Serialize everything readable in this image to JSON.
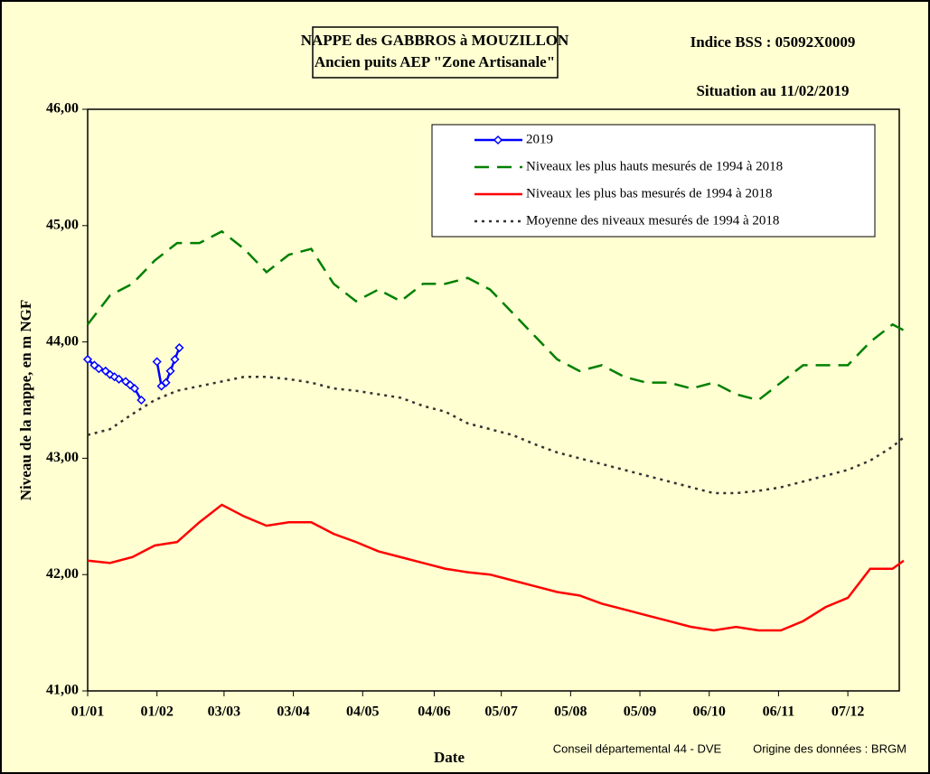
{
  "chart_data": {
    "type": "line",
    "title": [
      "NAPPE des GABBROS à MOUZILLON",
      "Ancien puits AEP \"Zone Artisanale\""
    ],
    "subtitle": "Indice BSS : 05092X0009",
    "annotations": [
      "Situation au 11/02/2019",
      "Conseil départemental 44 - DVE",
      "Origine des données : BRGM"
    ],
    "x_label": "Date",
    "y_label": "Niveau de la nappe, en m NGF",
    "xlim": [
      0,
      363
    ],
    "ylim": [
      41,
      46
    ],
    "xticks": [
      {
        "value": 0,
        "label": "01/01"
      },
      {
        "value": 31,
        "label": "01/02"
      },
      {
        "value": 61,
        "label": "03/03"
      },
      {
        "value": 92,
        "label": "03/04"
      },
      {
        "value": 123,
        "label": "04/05"
      },
      {
        "value": 155,
        "label": "04/06"
      },
      {
        "value": 185,
        "label": "05/07"
      },
      {
        "value": 216,
        "label": "05/08"
      },
      {
        "value": 247,
        "label": "05/09"
      },
      {
        "value": 278,
        "label": "06/10"
      },
      {
        "value": 309,
        "label": "06/11"
      },
      {
        "value": 340,
        "label": "07/12"
      }
    ],
    "yticks": [
      {
        "value": 41,
        "label": "41,00"
      },
      {
        "value": 42,
        "label": "42,00"
      },
      {
        "value": 43,
        "label": "43,00"
      },
      {
        "value": 44,
        "label": "44,00"
      },
      {
        "value": 45,
        "label": "45,00"
      },
      {
        "value": 46,
        "label": "46,00"
      }
    ],
    "grid": false,
    "legend": "upper right",
    "series": [
      {
        "name": "2019",
        "color": "#0000ff",
        "dash": "solid",
        "marker": "diamond",
        "x": [
          0,
          3,
          5,
          8,
          10,
          12,
          14,
          17,
          19,
          21,
          24,
          null,
          31,
          33,
          35,
          37,
          39,
          41
        ],
        "values": [
          43.85,
          43.8,
          43.77,
          43.75,
          43.72,
          43.7,
          43.68,
          43.66,
          43.63,
          43.6,
          43.5,
          null,
          43.83,
          43.62,
          43.65,
          43.75,
          43.85,
          43.95
        ]
      },
      {
        "name": "Niveaux les plus hauts mesurés de 1994 à 2018",
        "color": "#008000",
        "dash": "dashed",
        "x": [
          0,
          10,
          20,
          30,
          40,
          50,
          60,
          70,
          80,
          90,
          100,
          110,
          120,
          130,
          140,
          150,
          160,
          170,
          180,
          190,
          200,
          210,
          220,
          230,
          240,
          250,
          260,
          270,
          280,
          290,
          300,
          310,
          320,
          330,
          340,
          350,
          360,
          365
        ],
        "values": [
          44.15,
          44.4,
          44.5,
          44.7,
          44.85,
          44.85,
          44.95,
          44.8,
          44.6,
          44.75,
          44.8,
          44.5,
          44.35,
          44.45,
          44.35,
          44.5,
          44.5,
          44.55,
          44.45,
          44.25,
          44.05,
          43.85,
          43.75,
          43.8,
          43.7,
          43.65,
          43.65,
          43.6,
          43.65,
          43.55,
          43.5,
          43.65,
          43.8,
          43.8,
          43.8,
          44.0,
          44.15,
          44.1
        ]
      },
      {
        "name": "Niveaux les plus bas mesurés de 1994 à 2018",
        "color": "#ff0000",
        "dash": "solid",
        "x": [
          0,
          10,
          20,
          30,
          40,
          50,
          60,
          70,
          80,
          90,
          100,
          110,
          120,
          130,
          140,
          150,
          160,
          170,
          180,
          190,
          200,
          210,
          220,
          230,
          240,
          250,
          260,
          270,
          280,
          290,
          300,
          310,
          320,
          330,
          340,
          350,
          360,
          365
        ],
        "values": [
          42.12,
          42.1,
          42.15,
          42.25,
          42.28,
          42.45,
          42.6,
          42.5,
          42.42,
          42.45,
          42.45,
          42.35,
          42.28,
          42.2,
          42.15,
          42.1,
          42.05,
          42.02,
          42.0,
          41.95,
          41.9,
          41.85,
          41.82,
          41.75,
          41.7,
          41.65,
          41.6,
          41.55,
          41.52,
          41.55,
          41.52,
          41.52,
          41.6,
          41.72,
          41.8,
          42.05,
          42.05,
          42.12
        ]
      },
      {
        "name": "Moyenne des niveaux mesurés de 1994 à 2018",
        "color": "#333333",
        "dash": "dotted",
        "x": [
          0,
          10,
          20,
          30,
          40,
          50,
          60,
          70,
          80,
          90,
          100,
          110,
          120,
          130,
          140,
          150,
          160,
          170,
          180,
          190,
          200,
          210,
          220,
          230,
          240,
          250,
          260,
          270,
          280,
          290,
          300,
          310,
          320,
          330,
          340,
          350,
          360,
          365
        ],
        "values": [
          43.2,
          43.25,
          43.38,
          43.5,
          43.58,
          43.62,
          43.66,
          43.7,
          43.7,
          43.68,
          43.65,
          43.6,
          43.58,
          43.55,
          43.52,
          43.45,
          43.4,
          43.3,
          43.25,
          43.2,
          43.12,
          43.05,
          43.0,
          42.95,
          42.9,
          42.85,
          42.8,
          42.75,
          42.7,
          42.7,
          42.72,
          42.75,
          42.8,
          42.85,
          42.9,
          42.98,
          43.1,
          43.18
        ]
      }
    ]
  }
}
